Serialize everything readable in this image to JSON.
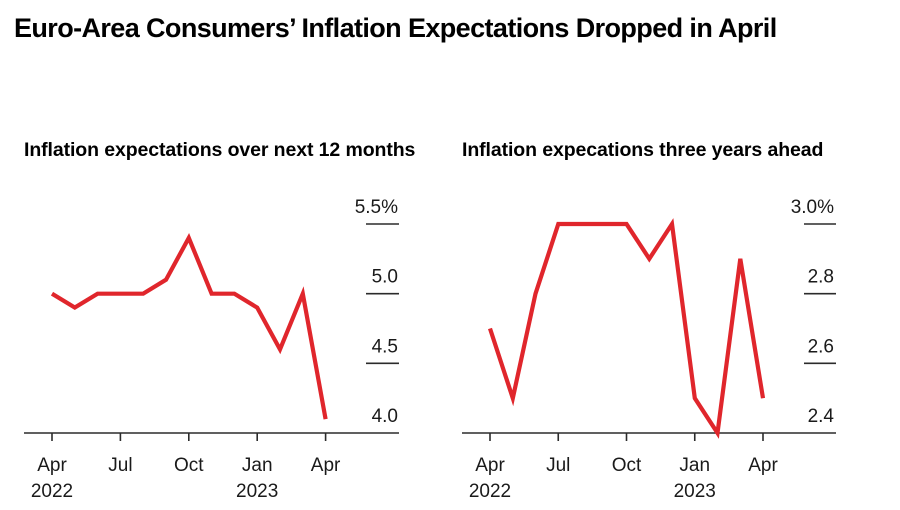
{
  "title": "Euro-Area Consumers’ Inflation Expectations Dropped in April",
  "colors": {
    "line": "#e0262c",
    "axis": "#2b2b2b",
    "background": "#ffffff"
  },
  "chart_data": [
    {
      "type": "line",
      "title": "Inflation expectations over next 12 months",
      "xlabel": "",
      "ylabel": "",
      "x": [
        "2022-04",
        "2022-05",
        "2022-06",
        "2022-07",
        "2022-08",
        "2022-09",
        "2022-10",
        "2022-11",
        "2022-12",
        "2023-01",
        "2023-02",
        "2023-03",
        "2023-04"
      ],
      "series": [
        {
          "name": "Inflation expectations over next 12 months",
          "values": [
            5.0,
            4.9,
            5.0,
            5.0,
            5.0,
            5.1,
            5.4,
            5.0,
            5.0,
            4.9,
            4.6,
            5.0,
            4.1
          ]
        }
      ],
      "ylim": [
        4.0,
        5.5
      ],
      "yticks": [
        5.5,
        5.0,
        4.5,
        4.0
      ],
      "ytick_labels": [
        "5.5%",
        "5.0",
        "4.5",
        "4.0"
      ],
      "xticks": [
        {
          "x": "2022-04",
          "label": "Apr",
          "year": "2022"
        },
        {
          "x": "2022-07",
          "label": "Jul",
          "year": ""
        },
        {
          "x": "2022-10",
          "label": "Oct",
          "year": ""
        },
        {
          "x": "2023-01",
          "label": "Jan",
          "year": "2023"
        },
        {
          "x": "2023-04",
          "label": "Apr",
          "year": ""
        }
      ],
      "y_axis_side": "right",
      "grid": false,
      "legend": "none"
    },
    {
      "type": "line",
      "title": "Inflation expecations three years ahead",
      "xlabel": "",
      "ylabel": "",
      "x": [
        "2022-04",
        "2022-05",
        "2022-06",
        "2022-07",
        "2022-08",
        "2022-09",
        "2022-10",
        "2022-11",
        "2022-12",
        "2023-01",
        "2023-02",
        "2023-03",
        "2023-04"
      ],
      "series": [
        {
          "name": "Inflation expectations three years ahead",
          "values": [
            2.7,
            2.5,
            2.8,
            3.0,
            3.0,
            3.0,
            3.0,
            2.9,
            3.0,
            2.5,
            2.4,
            2.9,
            2.5
          ]
        }
      ],
      "ylim": [
        2.4,
        3.0
      ],
      "yticks": [
        3.0,
        2.8,
        2.6,
        2.4
      ],
      "ytick_labels": [
        "3.0%",
        "2.8",
        "2.6",
        "2.4"
      ],
      "xticks": [
        {
          "x": "2022-04",
          "label": "Apr",
          "year": "2022"
        },
        {
          "x": "2022-07",
          "label": "Jul",
          "year": ""
        },
        {
          "x": "2022-10",
          "label": "Oct",
          "year": ""
        },
        {
          "x": "2023-01",
          "label": "Jan",
          "year": "2023"
        },
        {
          "x": "2023-04",
          "label": "Apr",
          "year": ""
        }
      ],
      "y_axis_side": "right",
      "grid": false,
      "legend": "none"
    }
  ]
}
